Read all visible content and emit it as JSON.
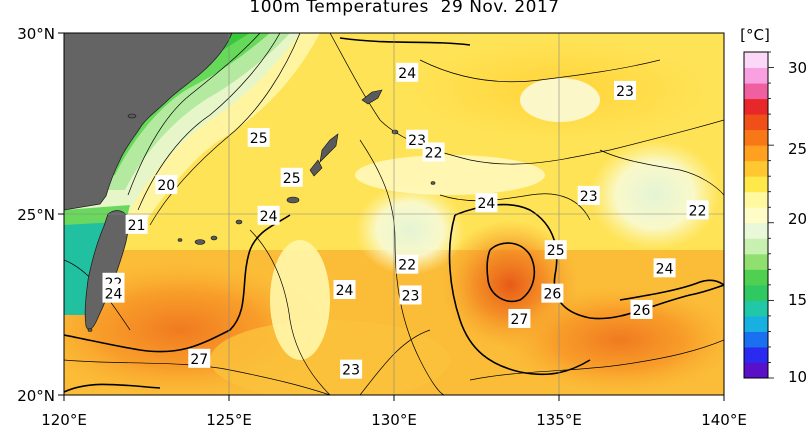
{
  "title": {
    "label": "100m Temperatures",
    "date": "29 Nov. 2017"
  },
  "axes": {
    "x_ticks": [
      "120°E",
      "125°E",
      "130°E",
      "135°E",
      "140°E"
    ],
    "y_ticks": [
      "30°N",
      "25°N",
      "20°N"
    ],
    "x_range": [
      120,
      140
    ],
    "y_range": [
      20,
      30
    ]
  },
  "colorbar": {
    "unit": "[°C]",
    "ticks": [
      "30",
      "25",
      "20",
      "15",
      "10"
    ],
    "range": [
      10,
      31
    ],
    "colors": [
      "#5a0fc8",
      "#2a2af0",
      "#1a70f0",
      "#18b0e0",
      "#20c8a8",
      "#30c860",
      "#50d050",
      "#90e070",
      "#c8f0b0",
      "#e8f8d8",
      "#fffcc8",
      "#fff8a0",
      "#ffe84a",
      "#ffc830",
      "#ffa020",
      "#f87818",
      "#f05018",
      "#e82828",
      "#f060a0",
      "#f8a0e0",
      "#fcd8f8"
    ]
  },
  "contour_labels": [
    {
      "text": "24",
      "lon": 130.4,
      "lat": 28.9
    },
    {
      "text": "23",
      "lon": 137.0,
      "lat": 28.4
    },
    {
      "text": "25",
      "lon": 125.9,
      "lat": 27.1
    },
    {
      "text": "23",
      "lon": 130.7,
      "lat": 27.05
    },
    {
      "text": "22",
      "lon": 131.2,
      "lat": 26.7
    },
    {
      "text": "25",
      "lon": 126.9,
      "lat": 26.0
    },
    {
      "text": "20",
      "lon": 123.1,
      "lat": 25.8
    },
    {
      "text": "23",
      "lon": 135.9,
      "lat": 25.5
    },
    {
      "text": "24",
      "lon": 132.8,
      "lat": 25.3
    },
    {
      "text": "24",
      "lon": 126.2,
      "lat": 24.95
    },
    {
      "text": "22",
      "lon": 139.2,
      "lat": 25.1
    },
    {
      "text": "21",
      "lon": 122.2,
      "lat": 24.7
    },
    {
      "text": "25",
      "lon": 134.9,
      "lat": 24.0
    },
    {
      "text": "22",
      "lon": 130.4,
      "lat": 23.6
    },
    {
      "text": "24",
      "lon": 138.2,
      "lat": 23.5
    },
    {
      "text": "22",
      "lon": 121.5,
      "lat": 23.1
    },
    {
      "text": "24",
      "lon": 121.5,
      "lat": 22.8
    },
    {
      "text": "24",
      "lon": 128.5,
      "lat": 22.9
    },
    {
      "text": "23",
      "lon": 130.5,
      "lat": 22.75
    },
    {
      "text": "26",
      "lon": 134.8,
      "lat": 22.8
    },
    {
      "text": "26",
      "lon": 137.5,
      "lat": 22.35
    },
    {
      "text": "27",
      "lon": 133.8,
      "lat": 22.1
    },
    {
      "text": "27",
      "lon": 124.1,
      "lat": 21.0
    },
    {
      "text": "23",
      "lon": 128.7,
      "lat": 20.7
    }
  ]
}
